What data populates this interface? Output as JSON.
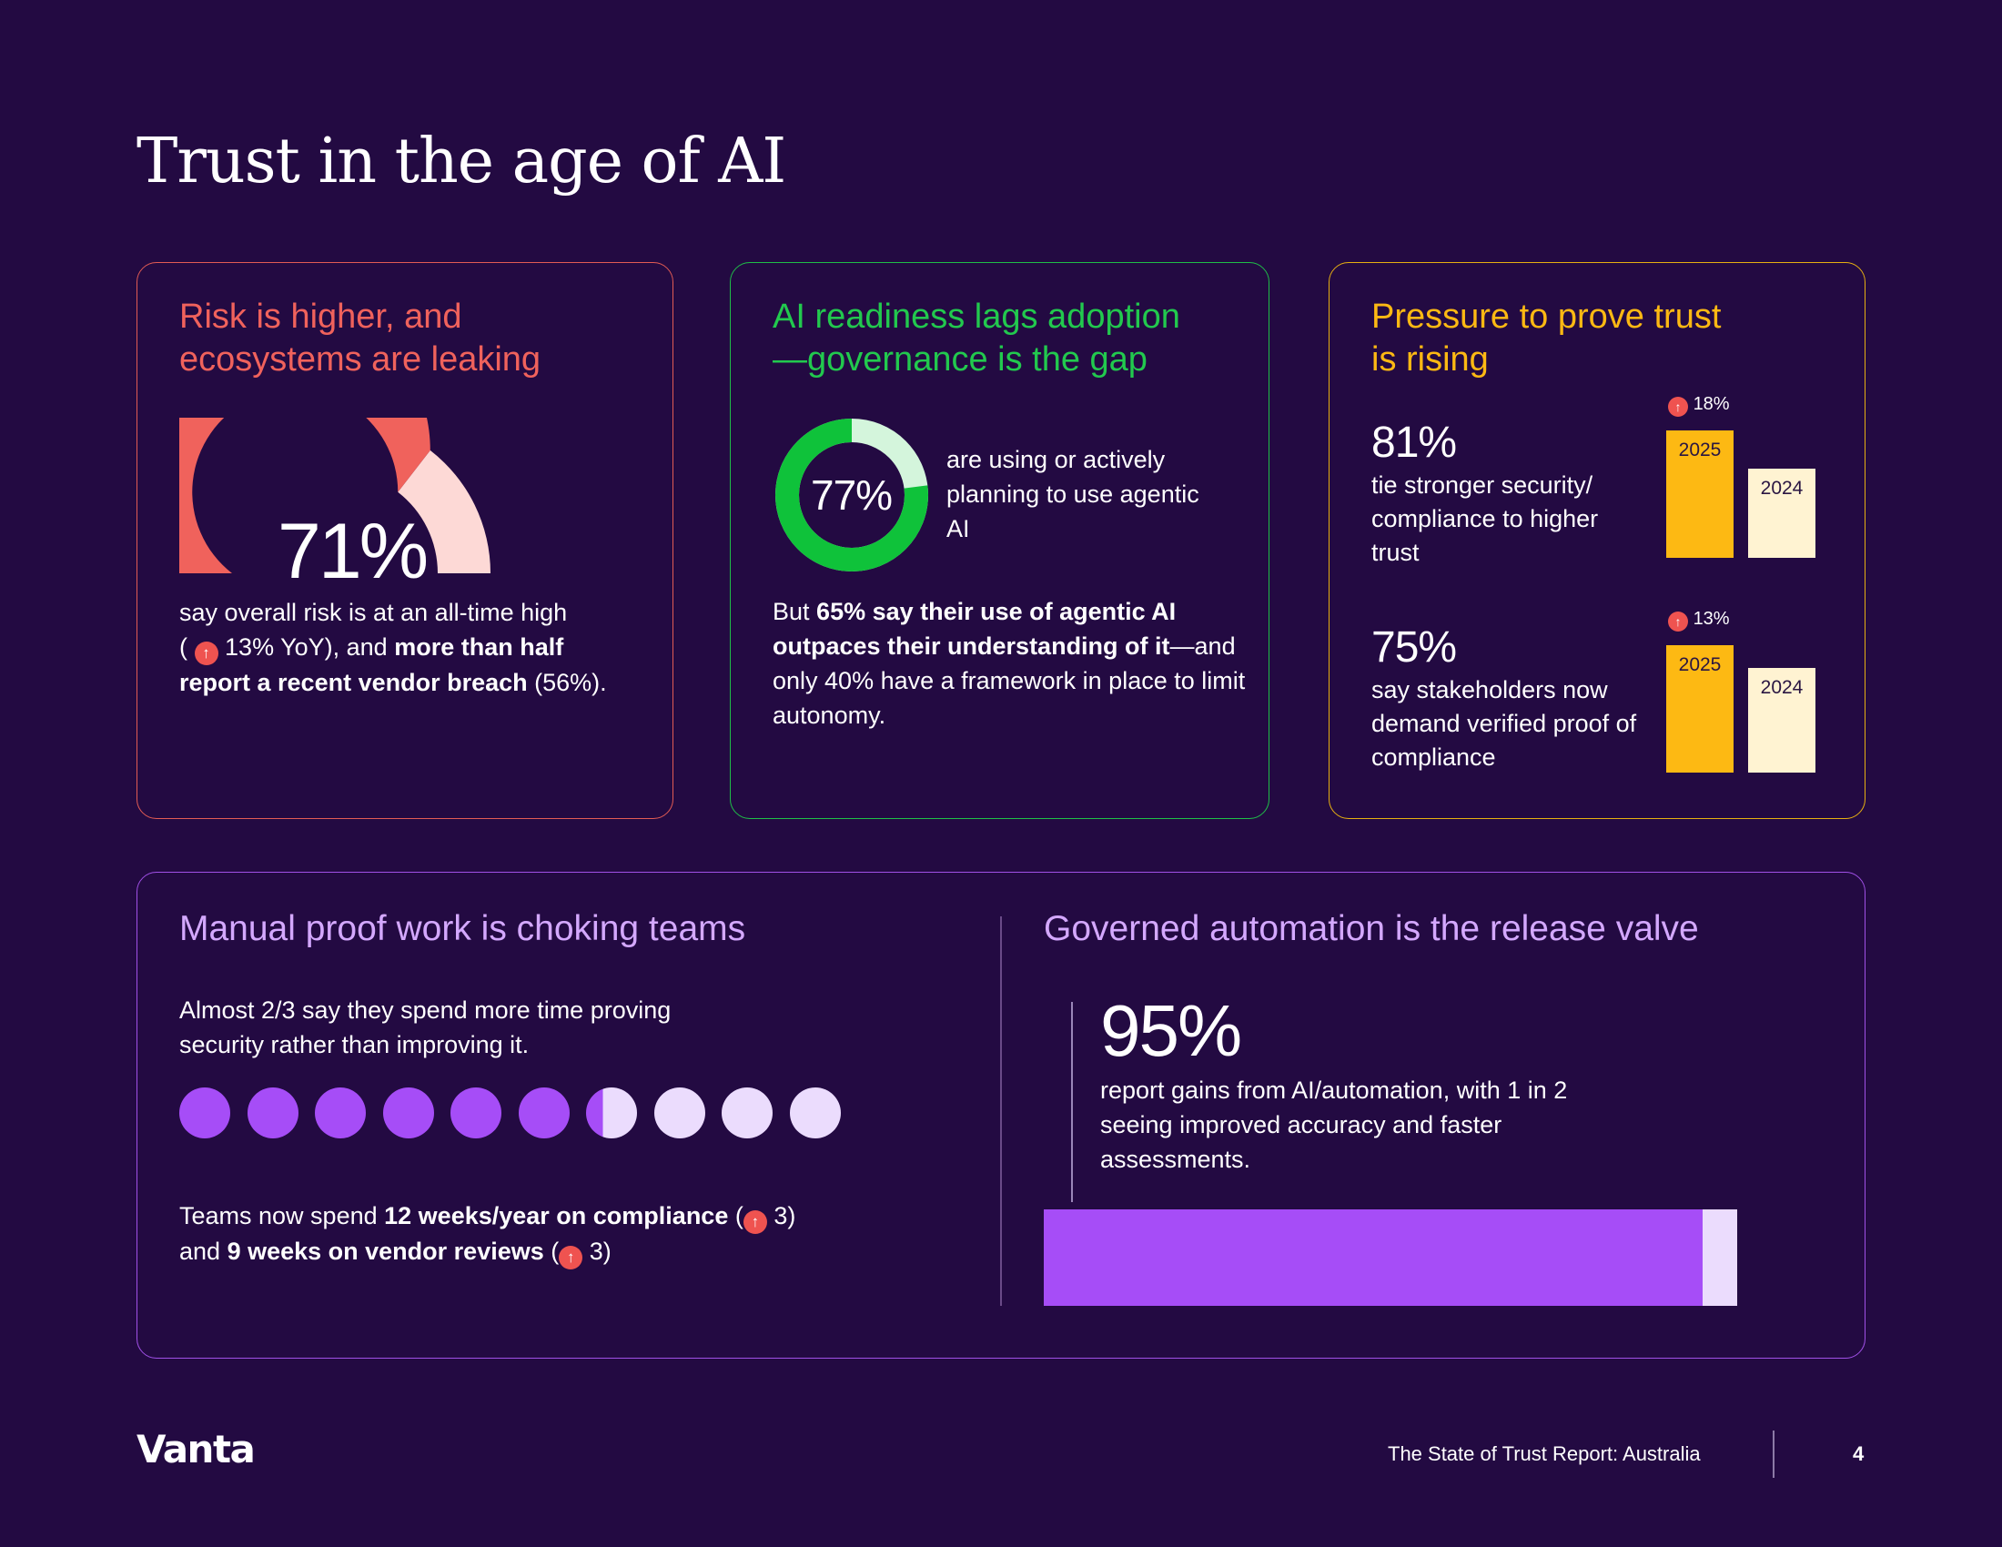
{
  "page": {
    "title": "Trust in the age of AI"
  },
  "colors": {
    "background": "#230a42",
    "risk": "#f0625c",
    "ai": "#22c94e",
    "pressure": "#fdb913",
    "purple": "#a64df7",
    "light_purple": "#ebdcfd"
  },
  "risk_card": {
    "title_line1": "Risk is higher, and",
    "title_line2": "ecosystems are leaking",
    "gauge_value": "71%",
    "gauge_fraction": 0.71,
    "text_part1": "say overall risk is at an all-time high",
    "text_part2_prefix": "(",
    "text_part2_suffix": "13% YoY), and",
    "text_bold1": "more than half",
    "text_bold2": "report a recent vendor breach",
    "text_end": "(56%).",
    "up_icon": "↑"
  },
  "ai_card": {
    "title_line1": "AI readiness lags adoption",
    "title_line2": "—governance is the gap",
    "donut_value": "77%",
    "donut_fraction": 0.77,
    "donut_label": "are using or actively planning to use agentic AI",
    "text_start": "But",
    "text_bold": "65% say their use of agentic AI outpaces their understanding of it",
    "text_end": "—and only 40% have a framework in place to limit autonomy."
  },
  "pressure_card": {
    "title_line1": "Pressure to prove trust",
    "title_line2": "is rising",
    "stats": [
      {
        "value": "81%",
        "description": "tie stronger security/ compliance to higher trust",
        "change": "18%",
        "bar_2025_label": "2025",
        "bar_2024_label": "2024",
        "bar_2025_fraction": 1.0,
        "bar_2024_fraction": 0.7
      },
      {
        "value": "75%",
        "description": "say stakeholders now demand verified proof of compliance",
        "change": "13%",
        "bar_2025_label": "2025",
        "bar_2024_label": "2024",
        "bar_2025_fraction": 1.0,
        "bar_2024_fraction": 0.82
      }
    ]
  },
  "bottom_card": {
    "left_title": "Manual proof work is choking teams",
    "left_text": "Almost 2/3 say they spend more time proving security rather than improving it.",
    "dots_total": 10,
    "dots_filled_fraction": 0.633,
    "teams_text_start": "Teams now spend",
    "teams_bold1": "12 weeks/year on compliance",
    "teams_open1": "(",
    "teams_num1": "3)",
    "teams_and": "and",
    "teams_bold2": "9 weeks on vendor reviews",
    "teams_open2": "(",
    "teams_num2": "3)",
    "right_title": "Governed automation is the release valve",
    "auto_value": "95%",
    "auto_fraction": 0.95,
    "auto_text": "report gains from AI/automation, with 1 in 2 seeing improved accuracy and faster assessments."
  },
  "footer": {
    "logo": "Vanta",
    "report_title": "The State of Trust Report: Australia",
    "page_number": "4"
  }
}
